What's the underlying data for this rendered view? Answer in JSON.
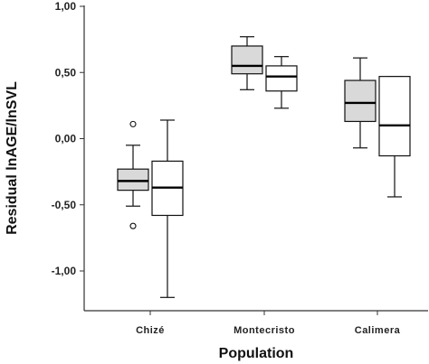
{
  "chart_data": {
    "type": "boxplot",
    "title": "",
    "xlabel": "Population",
    "ylabel": "Residual lnAGE/lnSVL",
    "ylim": [
      -1.3,
      1.0
    ],
    "y_ticks": [
      1.0,
      0.5,
      0.0,
      -0.5,
      -1.0
    ],
    "y_tick_labels": [
      "1,00",
      "0,50",
      "0,00",
      "-0,50",
      "-1,00"
    ],
    "categories": [
      "Chizé",
      "Montecristo",
      "Calimera"
    ],
    "grid": false,
    "legend": "none",
    "series": [
      {
        "fill": "#d9d9d9",
        "boxes": [
          {
            "category": "Chizé",
            "whisker_low": -0.51,
            "q1": -0.39,
            "median": -0.32,
            "q3": -0.23,
            "whisker_high": -0.05,
            "outliers": [
              0.11,
              -0.66
            ]
          },
          {
            "category": "Montecristo",
            "whisker_low": 0.37,
            "q1": 0.49,
            "median": 0.55,
            "q3": 0.7,
            "whisker_high": 0.77,
            "outliers": []
          },
          {
            "category": "Calimera",
            "whisker_low": -0.07,
            "q1": 0.13,
            "median": 0.27,
            "q3": 0.44,
            "whisker_high": 0.61,
            "outliers": []
          }
        ]
      },
      {
        "fill": "#ffffff",
        "boxes": [
          {
            "category": "Chizé",
            "whisker_low": -1.2,
            "q1": -0.58,
            "median": -0.37,
            "q3": -0.17,
            "whisker_high": 0.14,
            "outliers": []
          },
          {
            "category": "Montecristo",
            "whisker_low": 0.23,
            "q1": 0.36,
            "median": 0.47,
            "q3": 0.55,
            "whisker_high": 0.62,
            "outliers": []
          },
          {
            "category": "Calimera",
            "whisker_low": -0.44,
            "q1": -0.13,
            "median": 0.1,
            "q3": 0.47,
            "whisker_high": 0.47,
            "outliers": []
          }
        ]
      }
    ]
  }
}
